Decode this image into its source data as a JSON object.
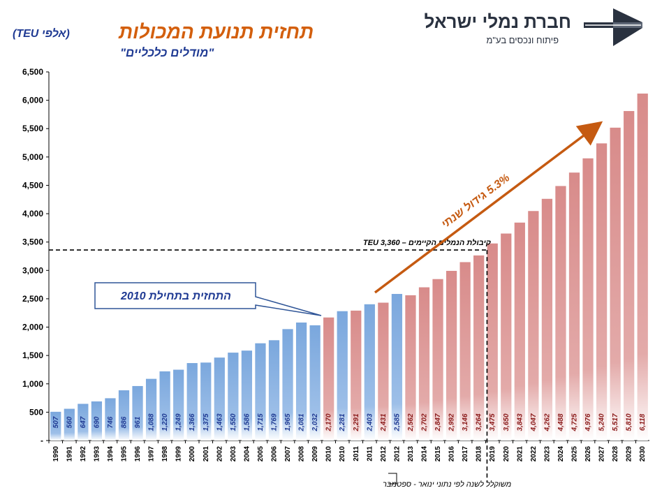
{
  "header": {
    "title": "תחזית תנועת המכולות",
    "title_unit": "(אלפי TEU)",
    "subtitle": "\"מודלים כלכליים\""
  },
  "logo": {
    "name": "חברת נמלי ישראל",
    "sub": "פיתוח ונכסים בע\"מ",
    "icon": "ports-company-logo-icon",
    "color": "#2a3240"
  },
  "colors": {
    "historic_bar": "#8eb4e3",
    "forecast_bar": "#d99594",
    "historic_label": "#1f3a93",
    "forecast_label": "#8b1a1a",
    "arrow": "#c55a11",
    "title": "#d35f0d"
  },
  "chart_data": {
    "type": "bar",
    "categories": [
      "1990",
      "1991",
      "1992",
      "1993",
      "1994",
      "1995",
      "1996",
      "1997",
      "1998",
      "1999",
      "2000",
      "2001",
      "2002",
      "2003",
      "2004",
      "2005",
      "2006",
      "2007",
      "2008",
      "2009",
      "2010",
      "2010",
      "2011",
      "2011",
      "2012",
      "2012",
      "2013",
      "2014",
      "2015",
      "2016",
      "2017",
      "2018",
      "2019",
      "2020",
      "2021",
      "2022",
      "2023",
      "2024",
      "2025",
      "2026",
      "2027",
      "2028",
      "2029",
      "2030"
    ],
    "values": [
      507,
      560,
      647,
      690,
      746,
      886,
      961,
      1088,
      1220,
      1249,
      1366,
      1375,
      1463,
      1550,
      1586,
      1715,
      1769,
      1965,
      2081,
      2032,
      2170,
      2281,
      2291,
      2403,
      2431,
      2585,
      2562,
      2702,
      2847,
      2992,
      3146,
      3264,
      3475,
      3650,
      3843,
      4047,
      4262,
      4488,
      4725,
      4976,
      5240,
      5517,
      5810,
      6118
    ],
    "data_labels": [
      "507",
      "560",
      "647",
      "690",
      "746",
      "886",
      "961",
      "1,088",
      "1,220",
      "1,249",
      "1,366",
      "1,375",
      "1,463",
      "1,550",
      "1,586",
      "1,715",
      "1,769",
      "1,965",
      "2,081",
      "2,032",
      "2,170",
      "2,281",
      "2,291",
      "2,403",
      "2,431",
      "2,585",
      "2,562",
      "2,702",
      "2,847",
      "2,992",
      "3,146",
      "3,264",
      "3,475",
      "3,650",
      "3,843",
      "4,047",
      "4,262",
      "4,488",
      "4,725",
      "4,976",
      "5,240",
      "5,517",
      "5,810",
      "6,118"
    ],
    "kind": [
      "a",
      "a",
      "a",
      "a",
      "a",
      "a",
      "a",
      "a",
      "a",
      "a",
      "a",
      "a",
      "a",
      "a",
      "a",
      "a",
      "a",
      "a",
      "a",
      "a",
      "f",
      "a",
      "f",
      "a",
      "f",
      "a",
      "f",
      "f",
      "f",
      "f",
      "f",
      "f",
      "f",
      "f",
      "f",
      "f",
      "f",
      "f",
      "f",
      "f",
      "f",
      "f",
      "f",
      "f"
    ],
    "y_ticks": [
      "-",
      "500",
      "1,000",
      "1,500",
      "2,000",
      "2,500",
      "3,000",
      "3,500",
      "4,000",
      "4,500",
      "5,000",
      "5,500",
      "6,000",
      "6,500"
    ],
    "ylim": [
      0,
      6500
    ],
    "grid": false,
    "capacity_line": {
      "value": 3360,
      "label": "קיבולת הנמלים הקיימים – TEU 3,360"
    },
    "callout": "התחזית בתחילת 2010",
    "growth_label": "5.3% גידול שנתי",
    "footnote": "משוקלל לשנה לפי נתוני ינואר - ספטמבר"
  }
}
